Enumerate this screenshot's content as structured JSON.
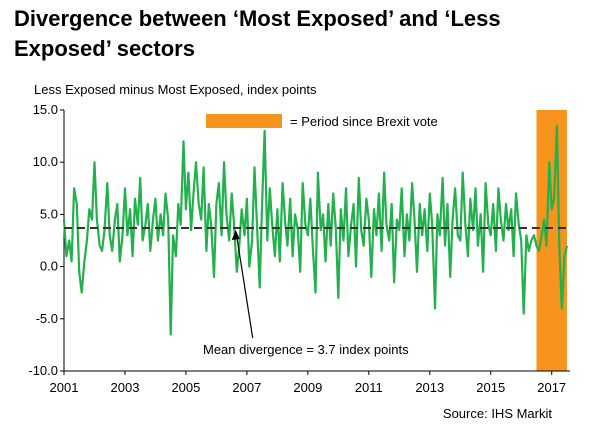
{
  "chart_data": {
    "type": "line",
    "title": "Divergence between ‘Most Exposed’ and ‘Less Exposed’ sectors",
    "ylabel": "Less Exposed minus Most Exposed, index points",
    "source": "Source: IHS Markit",
    "ylim": [
      -10,
      15
    ],
    "xlim": [
      2001,
      2017.6
    ],
    "y_ticks": [
      "15.0",
      "10.0",
      "5.0",
      "0.0",
      "-5.0",
      "-10.0"
    ],
    "y_tick_values": [
      15,
      10,
      5,
      0,
      -5,
      -10
    ],
    "x_ticks": [
      "2001",
      "2003",
      "2005",
      "2007",
      "2009",
      "2011",
      "2013",
      "2015",
      "2017"
    ],
    "x_tick_values": [
      2001,
      2003,
      2005,
      2007,
      2009,
      2011,
      2013,
      2015,
      2017
    ],
    "grid": false,
    "mean": 3.7,
    "brexit_period": [
      2016.5,
      2017.5
    ],
    "legend": [
      {
        "label": "= Period since Brexit vote",
        "color": "#f7941d",
        "placement": "top"
      }
    ],
    "annotations": [
      {
        "text": "Mean divergence = 3.7 index points",
        "x": 2006.6,
        "y": 3.7
      }
    ],
    "series": [
      {
        "color": "#22b14c",
        "x": [
          2001.0,
          2001.08,
          2001.17,
          2001.25,
          2001.33,
          2001.42,
          2001.5,
          2001.58,
          2001.67,
          2001.75,
          2001.83,
          2001.92,
          2002.0,
          2002.08,
          2002.17,
          2002.25,
          2002.33,
          2002.42,
          2002.5,
          2002.58,
          2002.67,
          2002.75,
          2002.83,
          2002.92,
          2003.0,
          2003.08,
          2003.17,
          2003.25,
          2003.33,
          2003.42,
          2003.5,
          2003.58,
          2003.67,
          2003.75,
          2003.83,
          2003.92,
          2004.0,
          2004.08,
          2004.17,
          2004.25,
          2004.33,
          2004.42,
          2004.5,
          2004.58,
          2004.67,
          2004.75,
          2004.83,
          2004.92,
          2005.0,
          2005.08,
          2005.17,
          2005.25,
          2005.33,
          2005.42,
          2005.5,
          2005.58,
          2005.67,
          2005.75,
          2005.83,
          2005.92,
          2006.0,
          2006.08,
          2006.17,
          2006.25,
          2006.33,
          2006.42,
          2006.5,
          2006.58,
          2006.67,
          2006.75,
          2006.83,
          2006.92,
          2007.0,
          2007.08,
          2007.17,
          2007.25,
          2007.33,
          2007.42,
          2007.5,
          2007.58,
          2007.67,
          2007.75,
          2007.83,
          2007.92,
          2008.0,
          2008.08,
          2008.17,
          2008.25,
          2008.33,
          2008.42,
          2008.5,
          2008.58,
          2008.67,
          2008.75,
          2008.83,
          2008.92,
          2009.0,
          2009.08,
          2009.17,
          2009.25,
          2009.33,
          2009.42,
          2009.5,
          2009.58,
          2009.67,
          2009.75,
          2009.83,
          2009.92,
          2010.0,
          2010.08,
          2010.17,
          2010.25,
          2010.33,
          2010.42,
          2010.5,
          2010.58,
          2010.67,
          2010.75,
          2010.83,
          2010.92,
          2011.0,
          2011.08,
          2011.17,
          2011.25,
          2011.33,
          2011.42,
          2011.5,
          2011.58,
          2011.67,
          2011.75,
          2011.83,
          2011.92,
          2012.0,
          2012.08,
          2012.17,
          2012.25,
          2012.33,
          2012.42,
          2012.5,
          2012.58,
          2012.67,
          2012.75,
          2012.83,
          2012.92,
          2013.0,
          2013.08,
          2013.17,
          2013.25,
          2013.33,
          2013.42,
          2013.5,
          2013.58,
          2013.67,
          2013.75,
          2013.83,
          2013.92,
          2014.0,
          2014.08,
          2014.17,
          2014.25,
          2014.33,
          2014.42,
          2014.5,
          2014.58,
          2014.67,
          2014.75,
          2014.83,
          2014.92,
          2015.0,
          2015.08,
          2015.17,
          2015.25,
          2015.33,
          2015.42,
          2015.5,
          2015.58,
          2015.67,
          2015.75,
          2015.83,
          2015.92,
          2016.0,
          2016.08,
          2016.17,
          2016.25,
          2016.33,
          2016.42,
          2016.5,
          2016.58,
          2016.67,
          2016.75,
          2016.83,
          2016.92,
          2017.0,
          2017.08,
          2017.17,
          2017.25,
          2017.33,
          2017.42,
          2017.5
        ],
        "values": [
          4.5,
          1.0,
          2.5,
          0.5,
          7.5,
          6.0,
          -0.5,
          -2.5,
          0.5,
          2.5,
          5.5,
          4.5,
          10.0,
          4.5,
          2.0,
          1.5,
          3.5,
          8.0,
          3.0,
          1.5,
          4.5,
          6.0,
          0.5,
          3.0,
          7.5,
          3.0,
          5.5,
          1.0,
          6.5,
          4.0,
          8.5,
          2.5,
          4.0,
          6.0,
          1.5,
          4.5,
          6.5,
          2.5,
          5.0,
          3.0,
          7.0,
          4.5,
          -6.5,
          3.0,
          1.0,
          6.0,
          4.0,
          12.0,
          5.5,
          9.0,
          3.5,
          7.0,
          10.0,
          6.0,
          4.5,
          9.5,
          1.5,
          6.0,
          4.0,
          -1.0,
          6.0,
          8.0,
          3.0,
          10.0,
          5.0,
          2.5,
          7.0,
          4.0,
          -0.5,
          2.0,
          5.5,
          3.0,
          6.5,
          0.0,
          2.5,
          9.5,
          4.0,
          -2.0,
          6.0,
          13.0,
          2.5,
          7.5,
          4.0,
          1.0,
          5.5,
          0.5,
          8.0,
          4.5,
          2.0,
          6.5,
          1.0,
          5.0,
          3.5,
          -0.5,
          8.0,
          4.0,
          3.0,
          6.5,
          1.5,
          -2.5,
          9.0,
          3.5,
          5.0,
          0.5,
          6.0,
          2.0,
          7.0,
          3.5,
          -3.0,
          5.5,
          2.5,
          7.5,
          1.0,
          4.0,
          6.0,
          0.0,
          8.5,
          3.5,
          2.0,
          6.5,
          4.5,
          -1.0,
          5.5,
          3.0,
          7.0,
          1.5,
          9.0,
          4.0,
          2.5,
          6.0,
          -1.5,
          4.5,
          3.5,
          7.5,
          1.0,
          5.0,
          2.5,
          8.0,
          4.5,
          -0.5,
          6.0,
          3.0,
          5.5,
          1.5,
          7.0,
          4.0,
          -4.0,
          5.0,
          3.0,
          8.5,
          2.0,
          6.0,
          -1.0,
          4.5,
          7.5,
          3.0,
          2.5,
          9.0,
          4.0,
          1.0,
          6.5,
          3.5,
          7.5,
          2.0,
          5.0,
          -0.5,
          8.0,
          4.0,
          3.0,
          6.0,
          1.5,
          7.5,
          4.5,
          2.5,
          6.0,
          3.5,
          5.5,
          1.0,
          7.0,
          4.0,
          2.5,
          -4.5,
          3.0,
          1.5,
          2.5,
          3.0,
          2.0,
          1.5,
          3.0,
          4.5,
          2.0,
          10.0,
          5.5,
          6.5,
          13.5,
          2.0,
          -4.0,
          1.0,
          2.0
        ]
      }
    ]
  }
}
